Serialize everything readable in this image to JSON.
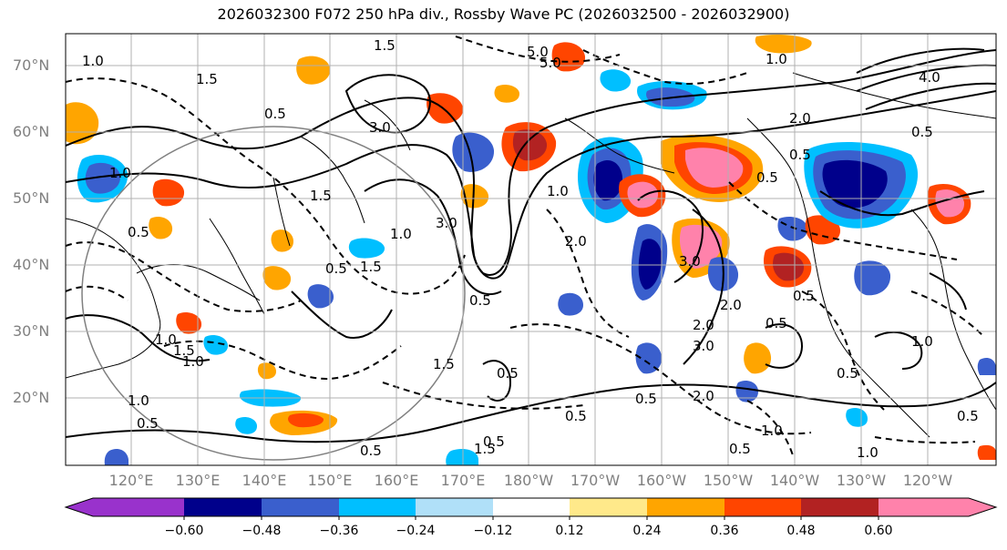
{
  "title": "2026032300 F072 250 hPa div., Rossby Wave PC (2026032500 - 2026032900)",
  "lat_labels": [
    "70°N",
    "60°N",
    "50°N",
    "40°N",
    "30°N",
    "20°N"
  ],
  "lon_labels": [
    "120°E",
    "130°E",
    "140°E",
    "150°E",
    "160°E",
    "170°E",
    "180°W",
    "170°W",
    "160°W",
    "150°W",
    "140°W",
    "130°W",
    "120°W"
  ],
  "colorbar": {
    "ticks": [
      "−0.60",
      "−0.48",
      "−0.36",
      "−0.24",
      "−0.12",
      "0.12",
      "0.24",
      "0.36",
      "0.48",
      "0.60"
    ],
    "colors": [
      "#9932cc",
      "#00008b",
      "#3a5fcd",
      "#00bfff",
      "#b0e0f8",
      "#ffffff",
      "#ffe98a",
      "#ffa500",
      "#ff4500",
      "#b22222",
      "#ff82ab"
    ]
  },
  "map": {
    "land_color": "#000000",
    "contour_color": "#000000",
    "circle_color": "#808080"
  },
  "contour_labels": [
    "1.0",
    "1.5",
    "5.0",
    "5.0",
    "0.5",
    "1.5",
    "3.0",
    "1.0",
    "1.5",
    "1.0",
    "0.5",
    "3.0",
    "1.0",
    "1.5",
    "0.5",
    "0.5",
    "1.0",
    "1.5",
    "0.5",
    "1.0",
    "0.5",
    "0.5",
    "4.0",
    "2.0",
    "0.5",
    "1.0",
    "0.5",
    "3.0",
    "2.0",
    "0.5",
    "0.5",
    "2.0",
    "1.0",
    "0.5",
    "0.5",
    "0.5",
    "3.0",
    "1.0",
    "1.5",
    "1.0",
    "0.5",
    "0.5",
    "1.0",
    "0.5",
    "1.5",
    "0.5",
    "2.0",
    "2.0"
  ]
}
